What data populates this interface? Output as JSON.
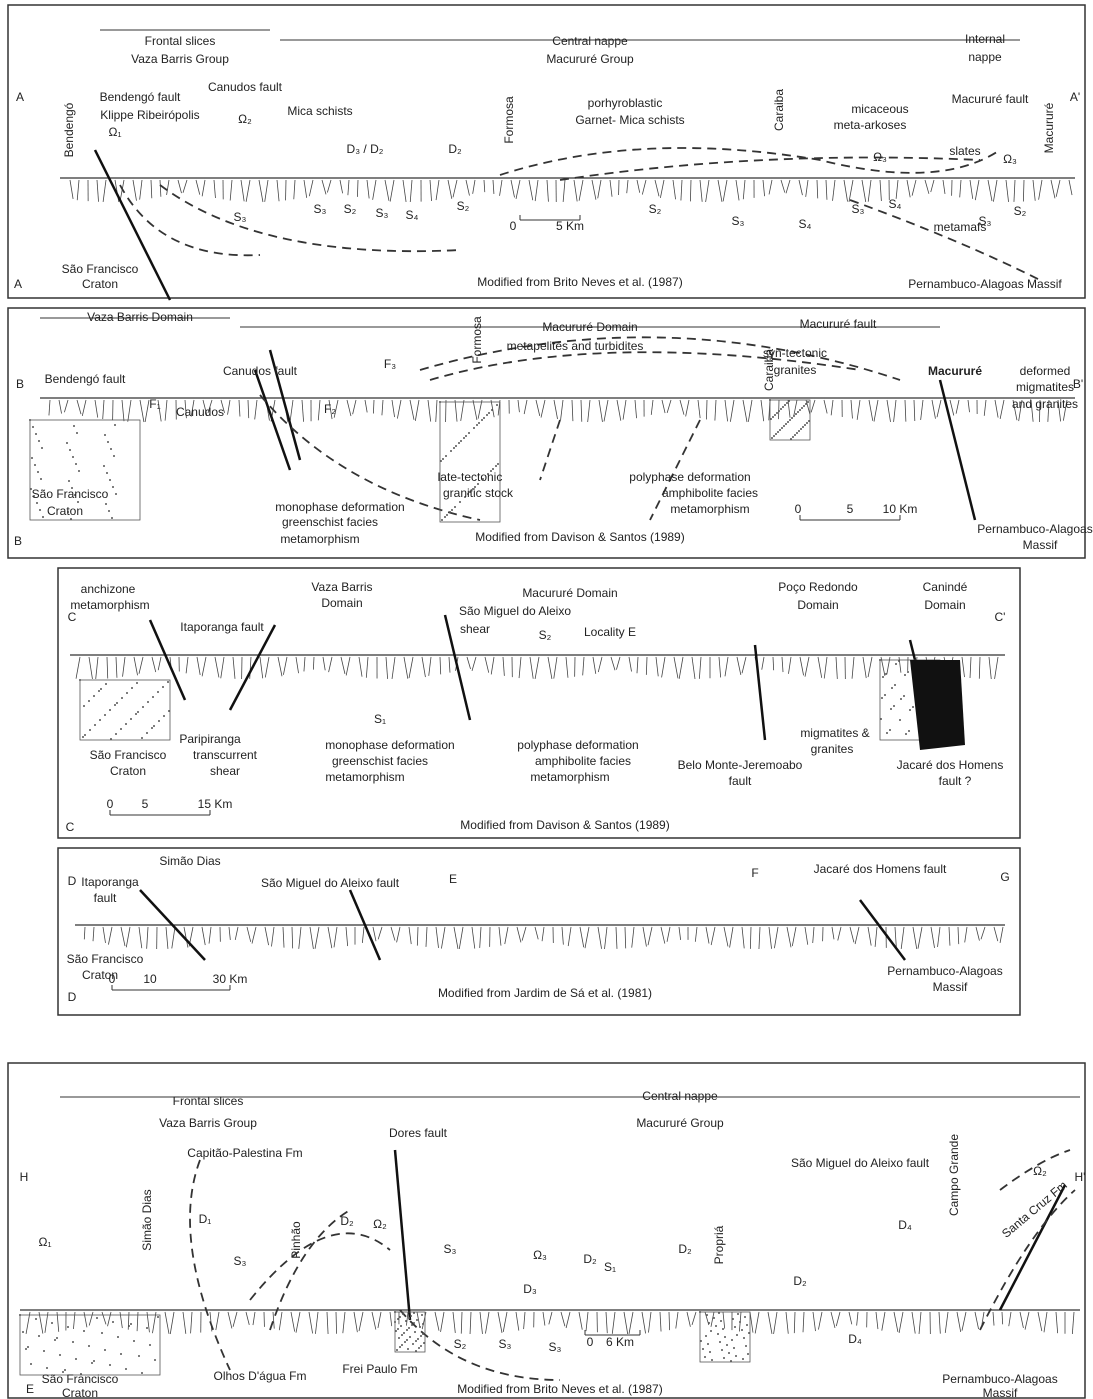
{
  "a": {
    "texts": [
      "Frontal slices",
      "Vaza Barris Group",
      "Central nappe",
      "Macururé Group",
      "Internal",
      "nappe",
      "A",
      "A'",
      "Bendengó",
      "Bendengó fault",
      "Klippe Ribeirópolis",
      "Ω₁",
      "Canudos fault",
      "Ω₂",
      "Mica schists",
      "D₃ / D₂",
      "D₂",
      "Formosa",
      "porhyroblastic",
      "Garnet- Mica schists",
      "Caraiba",
      "micaceous",
      "meta-arkoses",
      "Macururé fault",
      "slates",
      "Ω₃",
      "Ω₃",
      "Macururé",
      "S₃",
      "S₃",
      "S₂",
      "S₃",
      "S₄",
      "S₂",
      "S₂",
      "S₃",
      "S₄",
      "S₃",
      "S₄",
      "metamafs",
      "S₃",
      "S₂",
      "0",
      "5 Km",
      "São Francisco",
      "Craton",
      "A",
      "Modified from Brito Neves et al. (1987)",
      "Pernambuco-Alagoas Massif"
    ]
  },
  "b": {
    "texts": [
      "Vaza Barris Domain",
      "Macururé Domain",
      "metapelites and turbidites",
      "Macururé fault",
      "B",
      "Bendengó fault",
      "Canudos fault",
      "F₃",
      "Formosa",
      "Caraiba",
      "syn-tectonic",
      "granites",
      "Macururé",
      "deformed",
      "migmatites",
      "and granites",
      "B'",
      "F₁",
      "Canudos",
      "F₂",
      "polyphase deformation",
      "amphibolite facies",
      "metamorphism",
      "late-tectonic",
      "granitic stock",
      "monophase deformation",
      "greenschist facies",
      "metamorphism",
      "São Francisco",
      "Craton",
      "B",
      "Modified from Davison & Santos (1989)",
      "0",
      "5",
      "10 Km",
      "Pernambuco-Alagoas",
      "Massif"
    ]
  },
  "c": {
    "texts": [
      "anchizone",
      "metamorphism",
      "Vaza Barris",
      "Domain",
      "Macururé Domain",
      "Poço Redondo",
      "Domain",
      "Canindé",
      "Domain",
      "C",
      "C'",
      "Itaporanga fault",
      "São Miguel do Aleixo",
      "shear",
      "S₂",
      "Locality E",
      "S₁",
      "polyphase deformation",
      "amphibolite facies",
      "metamorphism",
      "monophase deformation",
      "greenschist facies",
      "metamorphism",
      "Paripiranga",
      "transcurrent",
      "shear",
      "São Francisco",
      "Craton",
      "migmatites &",
      "granites",
      "Belo Monte-Jeremoabo",
      "fault",
      "Jacaré dos Homens",
      "fault ?",
      "0",
      "5",
      "15 Km",
      "C",
      "Modified from Davison & Santos (1989)"
    ]
  },
  "d": {
    "texts": [
      "Simão Dias",
      "D",
      "Itaporanga",
      "fault",
      "São Miguel do Aleixo fault",
      "E",
      "F",
      "Jacaré dos Homens fault",
      "G",
      "São Francisco",
      "Craton",
      "Pernambuco-Alagoas",
      "Massif",
      "0",
      "10",
      "30 Km",
      "D",
      "Modified from Jardim de Sá et al. (1981)"
    ]
  },
  "e": {
    "texts": [
      "Frontal slices",
      "Vaza Barris Group",
      "Central nappe",
      "Macururé Group",
      "Dores fault",
      "Capitão-Palestina Fm",
      "São Miguel do Aleixo fault",
      "Campo Grande",
      "Ω₂",
      "Santa Cruz Fm",
      "H",
      "H'",
      "Ω₁",
      "Simão Dias",
      "D₁",
      "S₃",
      "Pinhão",
      "D₂",
      "Ω₂",
      "S₃",
      "Ω₃",
      "D₂",
      "S₁",
      "D₂",
      "Propriá",
      "D₂",
      "D₄",
      "D₄",
      "D₃",
      "S₂",
      "S₃",
      "S₃",
      "0",
      "6 Km",
      "Olhos D'água Fm",
      "Frei Paulo Fm",
      "São Francisco",
      "Craton",
      "E",
      "Modified from Brito Neves et al. (1987)",
      "Pernambuco-Alagoas",
      "Massif"
    ]
  }
}
